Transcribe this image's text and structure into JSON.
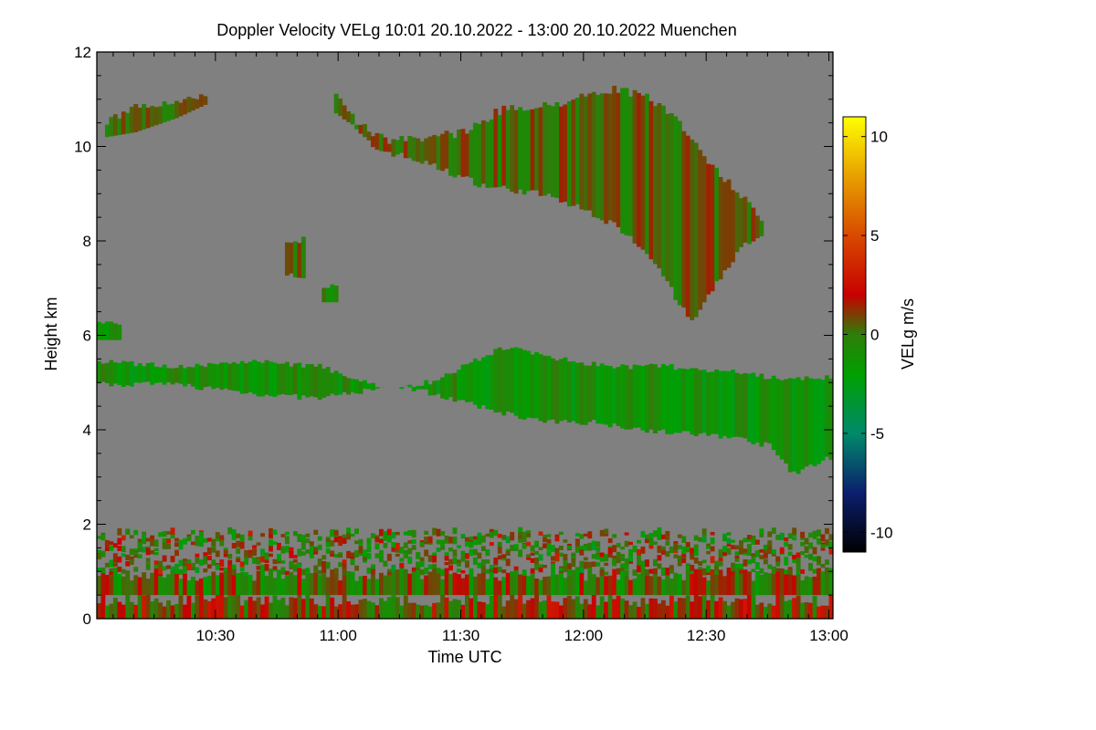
{
  "chart_data": {
    "type": "heatmap",
    "title": "Doppler Velocity VELg   10:01 20.10.2022 - 13:00 20.10.2022 Muenchen",
    "xlabel": "Time UTC",
    "ylabel": "Height km",
    "colorbar_label": "VELg m/s",
    "x_range_minutes_utc": [
      601,
      781
    ],
    "y_range_km": [
      0,
      12
    ],
    "color_range_ms": [
      -11,
      11
    ],
    "x_ticks": [
      {
        "minute": 630,
        "label": "10:30"
      },
      {
        "minute": 660,
        "label": "11:00"
      },
      {
        "minute": 690,
        "label": "11:30"
      },
      {
        "minute": 720,
        "label": "12:00"
      },
      {
        "minute": 750,
        "label": "12:30"
      },
      {
        "minute": 780,
        "label": "13:00"
      }
    ],
    "y_ticks": [
      {
        "value": 0,
        "label": "0"
      },
      {
        "value": 2,
        "label": "2"
      },
      {
        "value": 4,
        "label": "4"
      },
      {
        "value": 6,
        "label": "6"
      },
      {
        "value": 8,
        "label": "8"
      },
      {
        "value": 10,
        "label": "10"
      },
      {
        "value": 12,
        "label": "12"
      }
    ],
    "colorbar_ticks": [
      {
        "value": 10,
        "label": "10"
      },
      {
        "value": 5,
        "label": "5"
      },
      {
        "value": 0,
        "label": "0"
      },
      {
        "value": -5,
        "label": "-5"
      },
      {
        "value": -10,
        "label": "-10"
      }
    ],
    "colorscale": [
      {
        "value": -11,
        "color": "#000000"
      },
      {
        "value": -8,
        "color": "#0b1f6e"
      },
      {
        "value": -5,
        "color": "#008a6a"
      },
      {
        "value": -2,
        "color": "#00a000"
      },
      {
        "value": 0,
        "color": "#2e7d0a"
      },
      {
        "value": 2,
        "color": "#c80000"
      },
      {
        "value": 5,
        "color": "#d84a00"
      },
      {
        "value": 8,
        "color": "#e8a000"
      },
      {
        "value": 11,
        "color": "#ffff00"
      }
    ],
    "no_signal_color": "#808080",
    "echo_regions": [
      {
        "name": "upper cirrus cloud",
        "approx_time": [
          "10:59",
          "12:41"
        ],
        "height_km": [
          6.2,
          11.3
        ],
        "mean_velocity_ms": 0.3
      },
      {
        "name": "small cirrus patch west",
        "approx_time": [
          "10:07",
          "10:30"
        ],
        "height_km": [
          10.2,
          11.2
        ],
        "mean_velocity_ms": 0.2
      },
      {
        "name": "isolated patch near 8 km",
        "approx_time": [
          "10:47",
          "10:52"
        ],
        "height_km": [
          7.2,
          8.1
        ],
        "mean_velocity_ms": 0.2
      },
      {
        "name": "mid-level layer",
        "approx_time": [
          "10:01",
          "13:00"
        ],
        "height_km": [
          3.0,
          5.9
        ],
        "mean_velocity_ms": -1.2
      },
      {
        "name": "boundary layer clutter",
        "approx_time": [
          "10:01",
          "13:00"
        ],
        "height_km": [
          0,
          1.8
        ],
        "mean_velocity_ms": 0.5
      }
    ]
  }
}
